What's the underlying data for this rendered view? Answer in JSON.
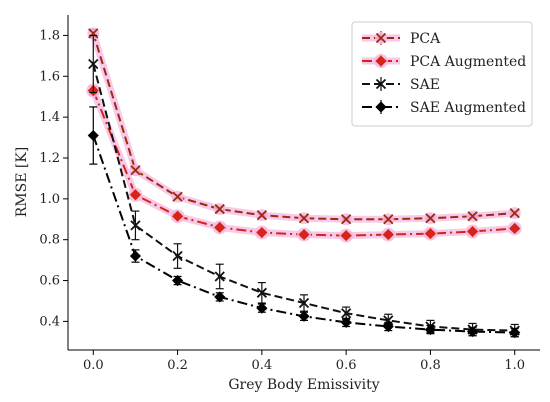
{
  "chart_data": {
    "type": "line",
    "title": "",
    "xlabel": "Grey Body Emissivity",
    "ylabel": "RMSE [K]",
    "xlim": [
      -0.06,
      1.06
    ],
    "ylim": [
      0.26,
      1.9
    ],
    "x_ticks": [
      "0.0",
      "0.2",
      "0.4",
      "0.6",
      "0.8",
      "1.0"
    ],
    "y_ticks": [
      "0.4",
      "0.6",
      "0.8",
      "1.0",
      "1.2",
      "1.4",
      "1.6",
      "1.8"
    ],
    "grid": false,
    "legend_position": "top-right",
    "x": [
      0.0,
      0.1,
      0.2,
      0.3,
      0.4,
      0.5,
      0.6,
      0.7,
      0.8,
      0.9,
      1.0
    ],
    "series": [
      {
        "name": "PCA",
        "color": "#9c2a12",
        "line_style": "dashed",
        "marker": "x",
        "values": [
          1.81,
          1.14,
          1.01,
          0.95,
          0.92,
          0.905,
          0.9,
          0.9,
          0.905,
          0.915,
          0.93
        ],
        "errors": [
          0.02,
          0.01,
          0.01,
          0.01,
          0.01,
          0.01,
          0.01,
          0.01,
          0.01,
          0.01,
          0.01
        ]
      },
      {
        "name": "PCA Augmented",
        "color": "#d62418",
        "line_style": "dashdot",
        "marker": "diamond",
        "values": [
          1.53,
          1.02,
          0.915,
          0.86,
          0.835,
          0.825,
          0.82,
          0.825,
          0.83,
          0.84,
          0.855
        ],
        "errors": [
          0.02,
          0.01,
          0.01,
          0.01,
          0.01,
          0.01,
          0.01,
          0.01,
          0.01,
          0.01,
          0.01
        ]
      },
      {
        "name": "SAE",
        "color": "#111111",
        "line_style": "dashed",
        "marker": "x",
        "values": [
          1.66,
          0.87,
          0.72,
          0.62,
          0.54,
          0.49,
          0.44,
          0.405,
          0.375,
          0.36,
          0.355
        ],
        "errors": [
          0.14,
          0.07,
          0.06,
          0.06,
          0.05,
          0.04,
          0.03,
          0.03,
          0.03,
          0.03,
          0.03
        ]
      },
      {
        "name": "SAE Augmented",
        "color": "#000000",
        "line_style": "dashdot",
        "marker": "diamond",
        "values": [
          1.31,
          0.72,
          0.6,
          0.52,
          0.465,
          0.425,
          0.395,
          0.375,
          0.36,
          0.35,
          0.345
        ],
        "errors": [
          0.14,
          0.03,
          0.02,
          0.02,
          0.02,
          0.02,
          0.02,
          0.02,
          0.02,
          0.02,
          0.02
        ]
      }
    ]
  }
}
